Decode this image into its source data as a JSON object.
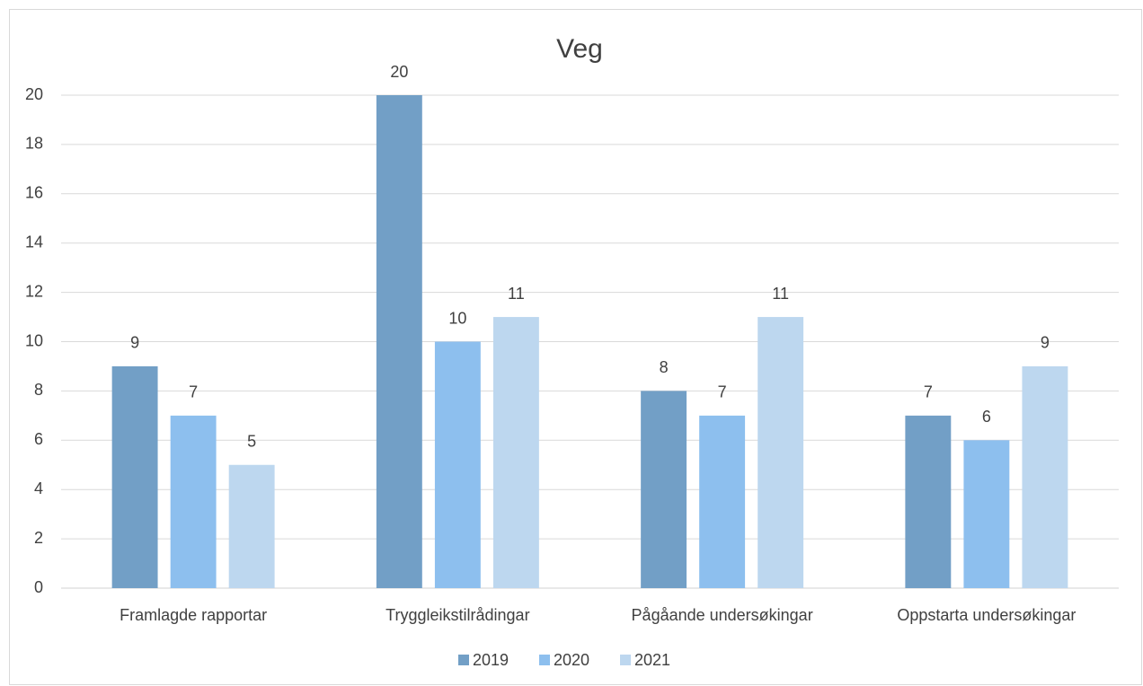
{
  "chart_data": {
    "type": "bar",
    "title": "Veg",
    "categories": [
      "Framlagde rapportar",
      "Tryggleikstilrådingar",
      "Pågåande undersøkingar",
      "Oppstarta undersøkingar"
    ],
    "series": [
      {
        "name": "2019",
        "color": "#729fc6",
        "values": [
          9,
          20,
          8,
          7
        ]
      },
      {
        "name": "2020",
        "color": "#8dbfee",
        "values": [
          7,
          10,
          7,
          6
        ]
      },
      {
        "name": "2021",
        "color": "#bdd7ef",
        "values": [
          5,
          11,
          11,
          9
        ]
      }
    ],
    "ylim": [
      0,
      20
    ],
    "yticks": [
      0,
      2,
      4,
      6,
      8,
      10,
      12,
      14,
      16,
      18,
      20
    ],
    "grid": true,
    "legend": "bottom",
    "data_labels": true
  }
}
